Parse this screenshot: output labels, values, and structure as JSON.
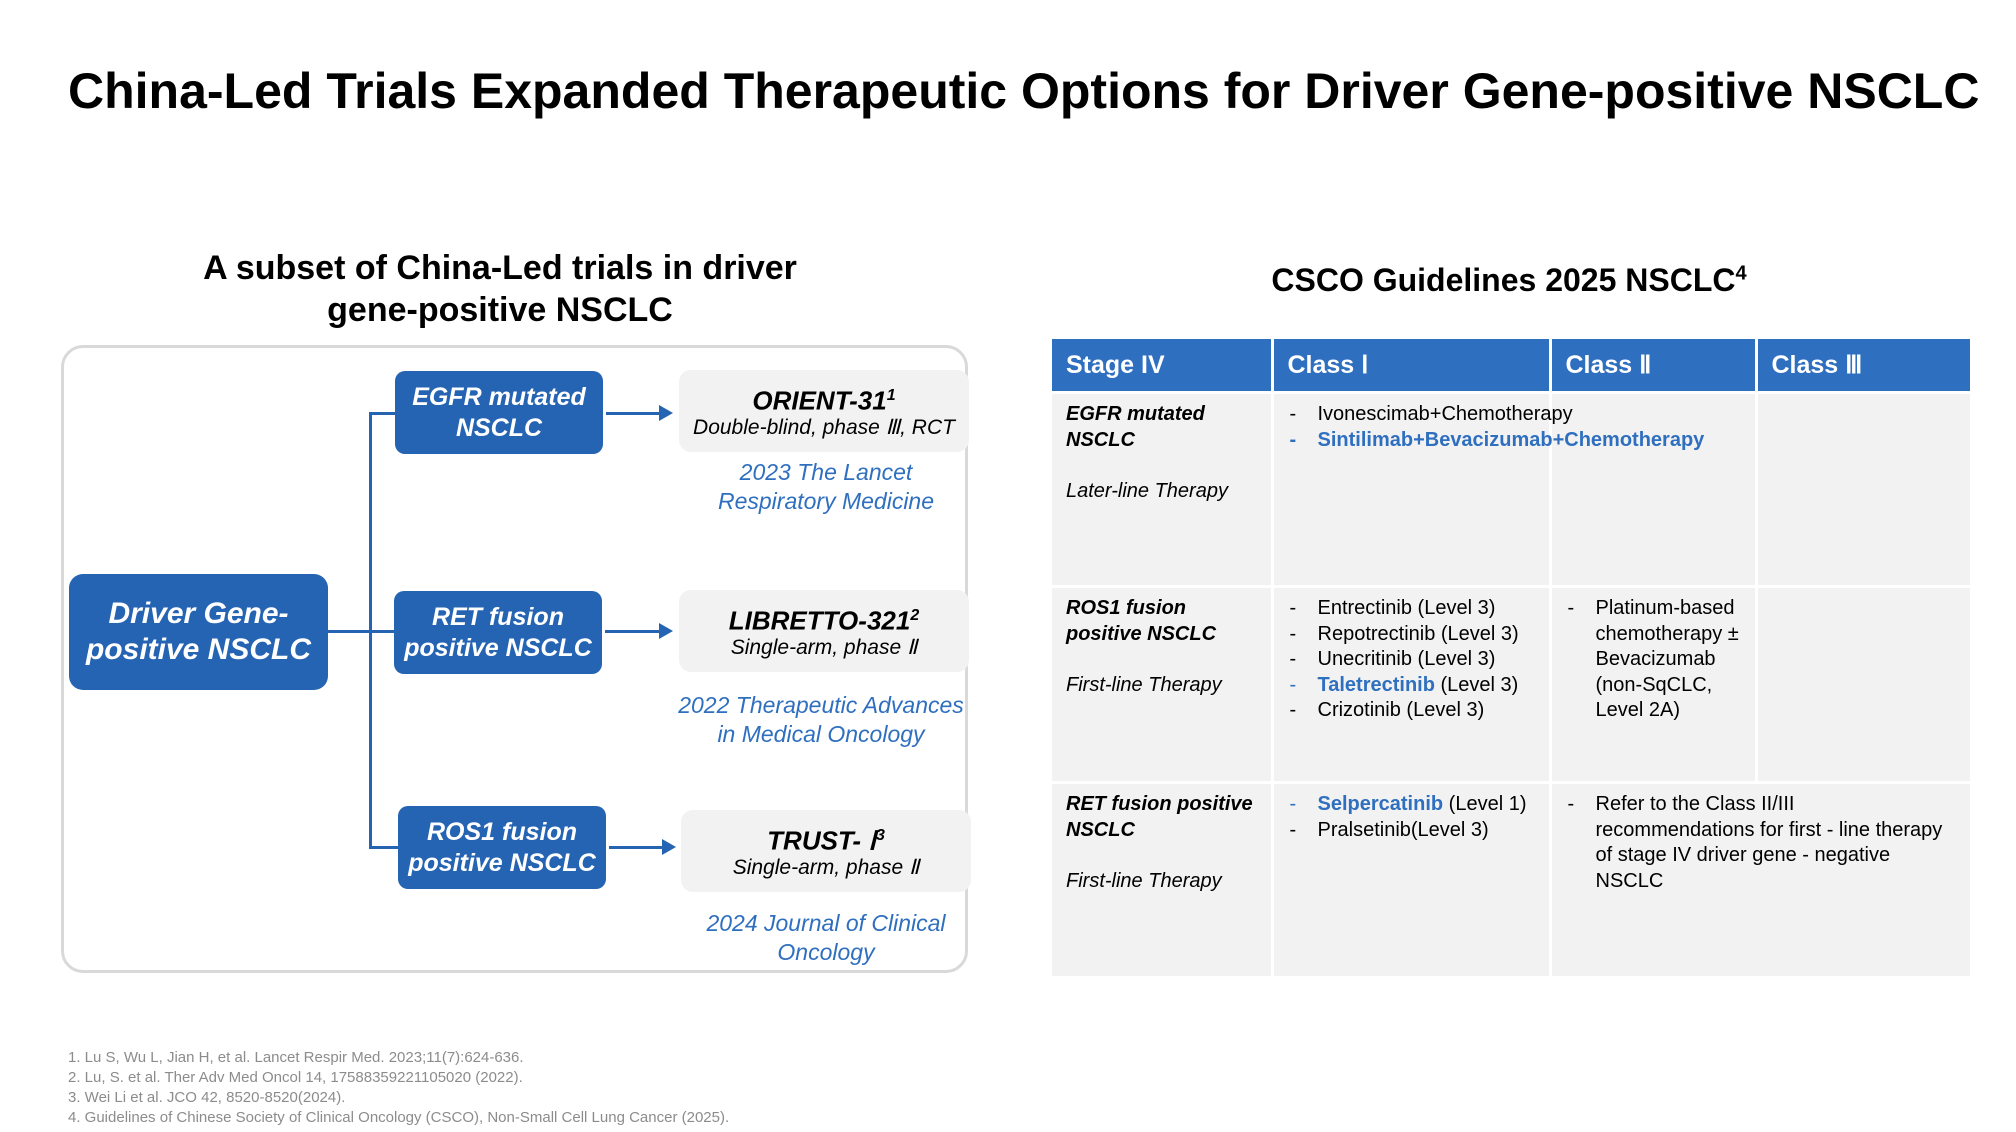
{
  "title": "China-Led Trials Expanded Therapeutic Options for Driver Gene-positive NSCLC",
  "left_heading": {
    "line1": "A subset of China-Led trials in driver",
    "line2": "gene-positive NSCLC"
  },
  "driver_box": {
    "line1": "Driver Gene-",
    "line2": "positive NSCLC"
  },
  "categories": [
    {
      "line1": "EGFR mutated",
      "line2": "NSCLC"
    },
    {
      "line1": "RET fusion",
      "line2": "positive NSCLC"
    },
    {
      "line1": "ROS1 fusion",
      "line2": "positive NSCLC"
    }
  ],
  "trials": [
    {
      "name": "ORIENT-31",
      "sup": "1",
      "design": "Double-blind, phase Ⅲ, RCT",
      "journal_line1": "2023 The Lancet",
      "journal_line2": "Respiratory Medicine"
    },
    {
      "name": "LIBRETTO-321",
      "sup": "2",
      "design": "Single-arm, phase Ⅱ",
      "journal_line1": "2022 Therapeutic Advances",
      "journal_line2": "in Medical Oncology"
    },
    {
      "name": "TRUST- Ⅰ",
      "sup": "3",
      "design": "Single-arm, phase Ⅱ",
      "journal_line1": "2024 Journal of Clinical",
      "journal_line2": "Oncology"
    }
  ],
  "right_heading": {
    "text": "CSCO Guidelines 2025 NSCLC",
    "sup": "4"
  },
  "table": {
    "headers": [
      "Stage IV",
      "Class Ⅰ",
      "Class Ⅱ",
      "Class Ⅲ"
    ],
    "rows": [
      {
        "stage": "EGFR mutated NSCLC",
        "therapy": "Later-line Therapy",
        "class1": [
          {
            "text": "Ivonescimab+Chemotherapy",
            "highlight": false
          },
          {
            "text": "Sintilimab+Bevacizumab+Chemotherapy",
            "highlight": true
          }
        ],
        "class2": ""
      },
      {
        "stage": "ROS1 fusion positive NSCLC",
        "therapy": "First-line Therapy",
        "class1": [
          {
            "text": "Entrectinib  (Level 3)",
            "highlight": false
          },
          {
            "text": "Repotrectinib  (Level 3)",
            "highlight": false
          },
          {
            "text": "Unecritinib  (Level 3)",
            "highlight": false
          },
          {
            "drug": "Taletrectinib",
            "level": " (Level 3)",
            "highlight": true
          },
          {
            "text": "Crizotinib  (Level 3)",
            "highlight": false
          }
        ],
        "class2": "Platinum-based chemotherapy ± Bevacizumab (non-SqCLC, Level 2A)"
      },
      {
        "stage": "RET fusion positive NSCLC",
        "therapy": "First-line Therapy",
        "class1": [
          {
            "drug": "Selpercatinib",
            "level": " (Level 1)",
            "highlight": true
          },
          {
            "text": "Pralsetinib(Level 3)",
            "highlight": false
          }
        ],
        "class2": "Refer to the Class II/III recommendations  for first - line therapy of stage IV driver gene - negative NSCLC"
      }
    ]
  },
  "references": [
    "1. Lu S, Wu L, Jian H, et al. Lancet Respir Med. 2023;11(7):624-636.",
    "2. Lu, S. et al. Ther Adv Med Oncol 14, 17588359221105020 (2022).",
    "3. Wei Li et al. JCO 42, 8520-8520(2024).",
    "4. Guidelines of Chinese Society of Clinical Oncology (CSCO), Non-Small Cell Lung Cancer (2025)."
  ],
  "colors": {
    "primary_blue": "#2563b3",
    "accent_blue": "#2f6fbf",
    "cell_gray": "#f2f2f2",
    "reference_gray": "#8c8c8c"
  }
}
